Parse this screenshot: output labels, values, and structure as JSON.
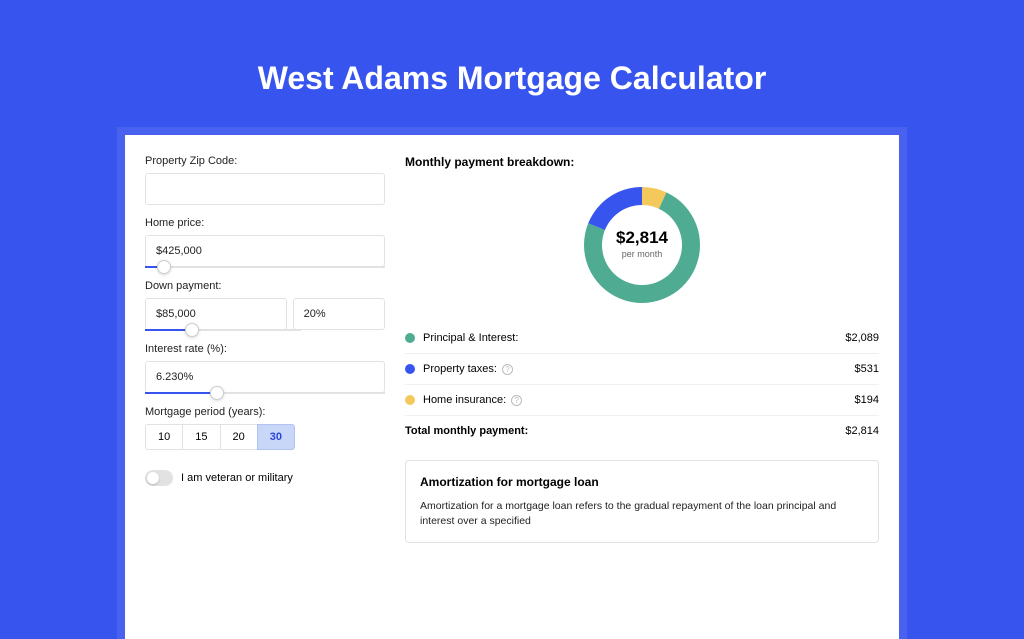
{
  "title": "West Adams Mortgage Calculator",
  "form": {
    "zip": {
      "label": "Property Zip Code:",
      "value": ""
    },
    "home_price": {
      "label": "Home price:",
      "value": "$425,000",
      "slider_pct": 8
    },
    "down_payment": {
      "label": "Down payment:",
      "amount": "$85,000",
      "percent": "20%",
      "slider_pct": 20
    },
    "interest_rate": {
      "label": "Interest rate (%):",
      "value": "6.230%",
      "slider_pct": 30
    },
    "period": {
      "label": "Mortgage period (years):",
      "options": [
        "10",
        "15",
        "20",
        "30"
      ],
      "active": "30"
    },
    "veteran": {
      "label": "I am veteran or military",
      "checked": false
    }
  },
  "breakdown": {
    "heading": "Monthly payment breakdown:",
    "center_value": "$2,814",
    "center_label": "per month",
    "items": [
      {
        "label": "Principal & Interest:",
        "value": "$2,089",
        "color": "#4fac93",
        "info": false
      },
      {
        "label": "Property taxes:",
        "value": "$531",
        "color": "#3755ee",
        "info": true
      },
      {
        "label": "Home insurance:",
        "value": "$194",
        "color": "#f3c95c",
        "info": true
      }
    ],
    "total_label": "Total monthly payment:",
    "total_value": "$2,814"
  },
  "donut": {
    "slices": [
      {
        "color": "#4fac93",
        "pct": 74.2
      },
      {
        "color": "#3755ee",
        "pct": 18.9
      },
      {
        "color": "#f3c95c",
        "pct": 6.9
      }
    ],
    "size": 120,
    "thickness": 18
  },
  "amortization": {
    "title": "Amortization for mortgage loan",
    "text": "Amortization for a mortgage loan refers to the gradual repayment of the loan principal and interest over a specified"
  }
}
